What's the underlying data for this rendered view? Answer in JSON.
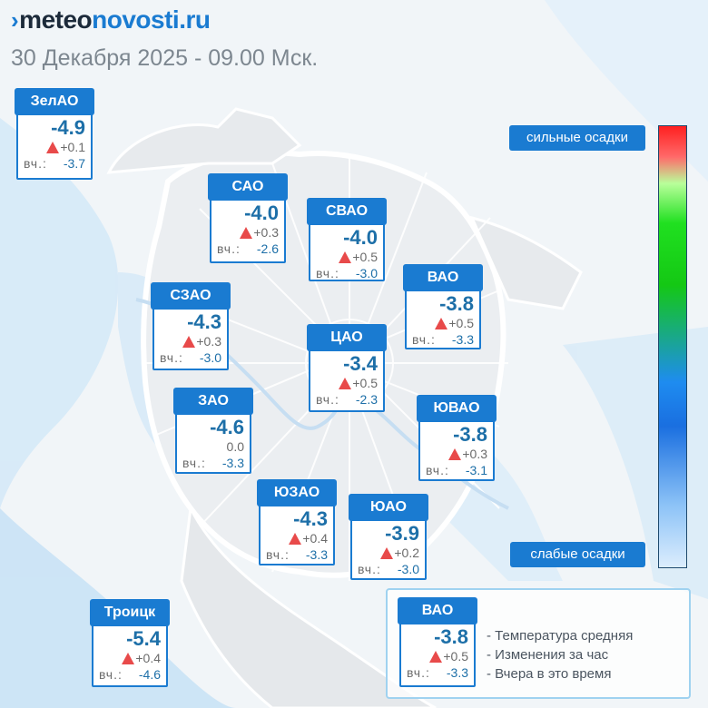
{
  "header": {
    "logo_part1": "meteo",
    "logo_part2": "novosti.ru",
    "subtitle": "30 Декабря 2025 - 09.00 Мск."
  },
  "districts": [
    {
      "name": "ЗелАО",
      "temp": "-4.9",
      "delta": "+0.1",
      "delta_dir": "up",
      "yesterday_label": "вч.:",
      "yesterday": "-3.7"
    },
    {
      "name": "САО",
      "temp": "-4.0",
      "delta": "+0.3",
      "delta_dir": "up",
      "yesterday_label": "вч.:",
      "yesterday": "-2.6"
    },
    {
      "name": "СВАО",
      "temp": "-4.0",
      "delta": "+0.5",
      "delta_dir": "up",
      "yesterday_label": "вч.:",
      "yesterday": "-3.0"
    },
    {
      "name": "ВАО",
      "temp": "-3.8",
      "delta": "+0.5",
      "delta_dir": "up",
      "yesterday_label": "вч.:",
      "yesterday": "-3.3"
    },
    {
      "name": "СЗАО",
      "temp": "-4.3",
      "delta": "+0.3",
      "delta_dir": "up",
      "yesterday_label": "вч.:",
      "yesterday": "-3.0"
    },
    {
      "name": "ЦАО",
      "temp": "-3.4",
      "delta": "+0.5",
      "delta_dir": "up",
      "yesterday_label": "вч.:",
      "yesterday": "-2.3"
    },
    {
      "name": "ЗАО",
      "temp": "-4.6",
      "delta": "0.0",
      "delta_dir": "none",
      "yesterday_label": "вч.:",
      "yesterday": "-3.3"
    },
    {
      "name": "ЮВАО",
      "temp": "-3.8",
      "delta": "+0.3",
      "delta_dir": "up",
      "yesterday_label": "вч.:",
      "yesterday": "-3.1"
    },
    {
      "name": "ЮЗАО",
      "temp": "-4.3",
      "delta": "+0.4",
      "delta_dir": "up",
      "yesterday_label": "вч.:",
      "yesterday": "-3.3"
    },
    {
      "name": "ЮАО",
      "temp": "-3.9",
      "delta": "+0.2",
      "delta_dir": "up",
      "yesterday_label": "вч.:",
      "yesterday": "-3.0"
    },
    {
      "name": "Троицк",
      "temp": "-5.4",
      "delta": "+0.4",
      "delta_dir": "up",
      "yesterday_label": "вч.:",
      "yesterday": "-4.6"
    }
  ],
  "precip_scale": {
    "top_label": "сильные осадки",
    "bottom_label": "слабые осадки",
    "colors": [
      "#ff2020",
      "#ff6a6a",
      "#20e020",
      "#1e8cf0",
      "#dcedfd"
    ]
  },
  "legend": {
    "sample": {
      "name": "ВАО",
      "temp": "-3.8",
      "delta": "+0.5",
      "delta_dir": "up",
      "yesterday_label": "вч.:",
      "yesterday": "-3.3"
    },
    "lines": [
      "- Температура средняя",
      "- Изменения за час",
      "- Вчера в это время"
    ]
  }
}
